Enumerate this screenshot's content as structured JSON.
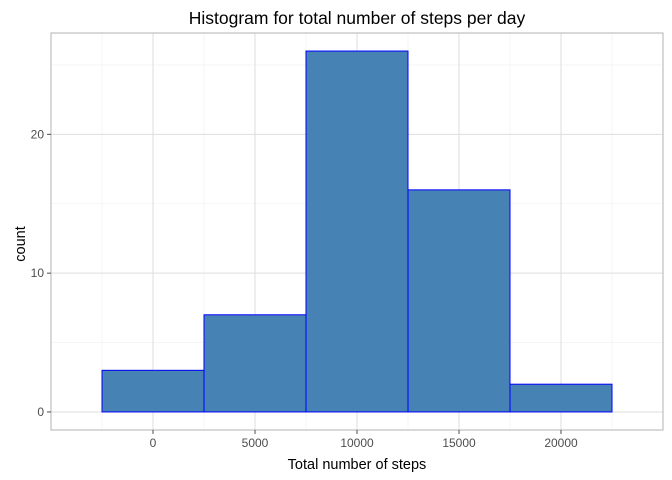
{
  "chart_data": {
    "type": "bar",
    "title": "Histogram for total number of steps per day",
    "xlabel": "Total number of steps",
    "ylabel": "count",
    "bins": [
      {
        "x_start": -2500,
        "x_end": 2500,
        "count": 3
      },
      {
        "x_start": 2500,
        "x_end": 7500,
        "count": 7
      },
      {
        "x_start": 7500,
        "x_end": 12500,
        "count": 26
      },
      {
        "x_start": 12500,
        "x_end": 17500,
        "count": 16
      },
      {
        "x_start": 17500,
        "x_end": 22500,
        "count": 2
      }
    ],
    "xlim": [
      -5000,
      25000
    ],
    "ylim": [
      -1.3,
      27.3
    ],
    "x_ticks": [
      0,
      5000,
      10000,
      15000,
      20000
    ],
    "x_tick_labels": [
      "0",
      "5000",
      "10000",
      "15000",
      "20000"
    ],
    "y_ticks": [
      0,
      10,
      20
    ],
    "y_tick_labels": [
      "0",
      "10",
      "20"
    ],
    "grid": true,
    "bar_fill": "#4682b4",
    "bar_outline": "#0000ff"
  }
}
